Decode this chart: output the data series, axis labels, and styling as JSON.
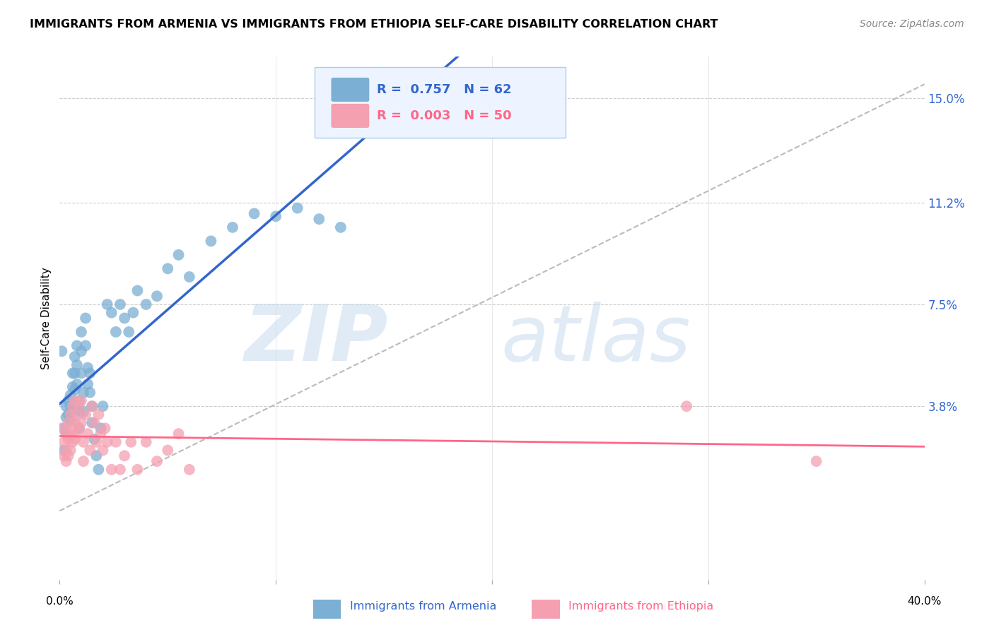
{
  "title": "IMMIGRANTS FROM ARMENIA VS IMMIGRANTS FROM ETHIOPIA SELF-CARE DISABILITY CORRELATION CHART",
  "source": "Source: ZipAtlas.com",
  "ylabel": "Self-Care Disability",
  "ytick_labels": [
    "15.0%",
    "11.2%",
    "7.5%",
    "3.8%"
  ],
  "ytick_values": [
    0.15,
    0.112,
    0.075,
    0.038
  ],
  "xlim": [
    0.0,
    0.4
  ],
  "ylim": [
    -0.025,
    0.165
  ],
  "armenia_R": "0.757",
  "armenia_N": "62",
  "ethiopia_R": "0.003",
  "ethiopia_N": "50",
  "armenia_color": "#7BAFD4",
  "ethiopia_color": "#F4A0B0",
  "armenia_line_color": "#3366CC",
  "ethiopia_line_color": "#FF6688",
  "diagonal_color": "#BBBBBB",
  "background_color": "#FFFFFF",
  "armenia_x": [
    0.001,
    0.002,
    0.002,
    0.003,
    0.003,
    0.003,
    0.004,
    0.004,
    0.005,
    0.005,
    0.005,
    0.006,
    0.006,
    0.006,
    0.007,
    0.007,
    0.007,
    0.007,
    0.008,
    0.008,
    0.008,
    0.009,
    0.009,
    0.009,
    0.01,
    0.01,
    0.01,
    0.011,
    0.011,
    0.012,
    0.012,
    0.013,
    0.013,
    0.014,
    0.014,
    0.015,
    0.015,
    0.016,
    0.017,
    0.018,
    0.019,
    0.02,
    0.022,
    0.024,
    0.026,
    0.028,
    0.03,
    0.032,
    0.034,
    0.036,
    0.04,
    0.045,
    0.05,
    0.055,
    0.06,
    0.07,
    0.08,
    0.09,
    0.1,
    0.11,
    0.12,
    0.13
  ],
  "armenia_y": [
    0.058,
    0.03,
    0.022,
    0.038,
    0.034,
    0.028,
    0.04,
    0.035,
    0.042,
    0.038,
    0.033,
    0.05,
    0.045,
    0.038,
    0.056,
    0.05,
    0.044,
    0.037,
    0.06,
    0.053,
    0.046,
    0.04,
    0.036,
    0.03,
    0.065,
    0.058,
    0.05,
    0.043,
    0.036,
    0.07,
    0.06,
    0.052,
    0.046,
    0.05,
    0.043,
    0.038,
    0.032,
    0.026,
    0.02,
    0.015,
    0.03,
    0.038,
    0.075,
    0.072,
    0.065,
    0.075,
    0.07,
    0.065,
    0.072,
    0.08,
    0.075,
    0.078,
    0.088,
    0.093,
    0.085,
    0.098,
    0.103,
    0.108,
    0.107,
    0.11,
    0.106,
    0.103
  ],
  "ethiopia_x": [
    0.001,
    0.002,
    0.002,
    0.003,
    0.003,
    0.003,
    0.004,
    0.004,
    0.004,
    0.005,
    0.005,
    0.005,
    0.006,
    0.006,
    0.006,
    0.007,
    0.007,
    0.007,
    0.008,
    0.008,
    0.009,
    0.009,
    0.01,
    0.01,
    0.011,
    0.011,
    0.012,
    0.013,
    0.014,
    0.015,
    0.016,
    0.017,
    0.018,
    0.019,
    0.02,
    0.021,
    0.022,
    0.024,
    0.026,
    0.028,
    0.03,
    0.033,
    0.036,
    0.04,
    0.045,
    0.05,
    0.055,
    0.06,
    0.29,
    0.35
  ],
  "ethiopia_y": [
    0.03,
    0.025,
    0.02,
    0.028,
    0.022,
    0.018,
    0.032,
    0.026,
    0.02,
    0.035,
    0.028,
    0.022,
    0.038,
    0.03,
    0.025,
    0.04,
    0.032,
    0.026,
    0.035,
    0.028,
    0.038,
    0.03,
    0.04,
    0.032,
    0.025,
    0.018,
    0.035,
    0.028,
    0.022,
    0.038,
    0.032,
    0.025,
    0.035,
    0.028,
    0.022,
    0.03,
    0.025,
    0.015,
    0.025,
    0.015,
    0.02,
    0.025,
    0.015,
    0.025,
    0.018,
    0.022,
    0.028,
    0.015,
    0.038,
    0.018
  ]
}
